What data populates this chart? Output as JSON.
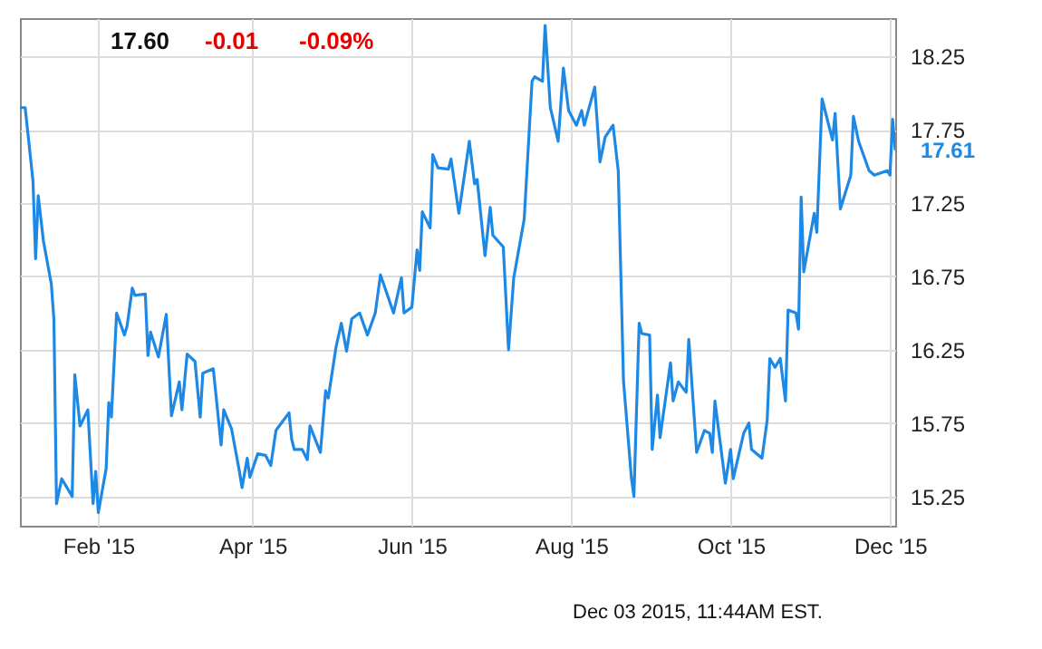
{
  "chart_data": {
    "type": "line",
    "grid": true,
    "marker": "none",
    "line_style": "solid",
    "xlim": [
      "2015-01-02",
      "2015-12-03"
    ],
    "xticks": [
      {
        "value": "2015-02-01",
        "label": "Feb '15"
      },
      {
        "value": "2015-04-01",
        "label": "Apr '15"
      },
      {
        "value": "2015-06-01",
        "label": "Jun '15"
      },
      {
        "value": "2015-08-01",
        "label": "Aug '15"
      },
      {
        "value": "2015-10-01",
        "label": "Oct '15"
      },
      {
        "value": "2015-12-01",
        "label": "Dec '15"
      }
    ],
    "ylim": [
      15.05,
      18.51
    ],
    "yticks": [
      15.25,
      15.75,
      16.25,
      16.75,
      17.25,
      17.75,
      18.25
    ],
    "annotations": [
      "17.60",
      "-0.01",
      "-0.09%",
      {
        "text": "17.61",
        "x": "2015-12-03",
        "y": 17.61
      },
      "Dec 03 2015, 11:44AM EST."
    ],
    "series": [
      {
        "color": "#1e88e5",
        "x": [
          "2015-01-02",
          "2015-01-04",
          "2015-01-07",
          "2015-01-08",
          "2015-01-09",
          "2015-01-11",
          "2015-01-14",
          "2015-01-15",
          "2015-01-16",
          "2015-01-18",
          "2015-01-22",
          "2015-01-23",
          "2015-01-25",
          "2015-01-28",
          "2015-01-30",
          "2015-01-31",
          "2015-02-01",
          "2015-02-04",
          "2015-02-05",
          "2015-02-06",
          "2015-02-08",
          "2015-02-11",
          "2015-02-12",
          "2015-02-14",
          "2015-02-15",
          "2015-02-19",
          "2015-02-20",
          "2015-02-21",
          "2015-02-24",
          "2015-02-27",
          "2015-03-01",
          "2015-03-04",
          "2015-03-05",
          "2015-03-07",
          "2015-03-10",
          "2015-03-12",
          "2015-03-13",
          "2015-03-17",
          "2015-03-20",
          "2015-03-21",
          "2015-03-24",
          "2015-03-27",
          "2015-03-28",
          "2015-03-30",
          "2015-03-31",
          "2015-04-03",
          "2015-04-06",
          "2015-04-08",
          "2015-04-10",
          "2015-04-15",
          "2015-04-16",
          "2015-04-17",
          "2015-04-20",
          "2015-04-22",
          "2015-04-23",
          "2015-04-27",
          "2015-04-29",
          "2015-04-30",
          "2015-05-03",
          "2015-05-05",
          "2015-05-07",
          "2015-05-09",
          "2015-05-12",
          "2015-05-15",
          "2015-05-18",
          "2015-05-20",
          "2015-05-25",
          "2015-05-28",
          "2015-05-29",
          "2015-06-01",
          "2015-06-03",
          "2015-06-04",
          "2015-06-05",
          "2015-06-08",
          "2015-06-09",
          "2015-06-11",
          "2015-06-15",
          "2015-06-16",
          "2015-06-19",
          "2015-06-23",
          "2015-06-25",
          "2015-06-26",
          "2015-06-29",
          "2015-07-01",
          "2015-07-02",
          "2015-07-06",
          "2015-07-08",
          "2015-07-10",
          "2015-07-14",
          "2015-07-17",
          "2015-07-18",
          "2015-07-21",
          "2015-07-22",
          "2015-07-24",
          "2015-07-27",
          "2015-07-29",
          "2015-07-31",
          "2015-08-03",
          "2015-08-05",
          "2015-08-06",
          "2015-08-10",
          "2015-08-12",
          "2015-08-14",
          "2015-08-17",
          "2015-08-19",
          "2015-08-21",
          "2015-08-24",
          "2015-08-25",
          "2015-08-27",
          "2015-08-28",
          "2015-08-31",
          "2015-09-01",
          "2015-09-03",
          "2015-09-04",
          "2015-09-08",
          "2015-09-09",
          "2015-09-11",
          "2015-09-14",
          "2015-09-15",
          "2015-09-18",
          "2015-09-21",
          "2015-09-23",
          "2015-09-24",
          "2015-09-25",
          "2015-09-29",
          "2015-10-01",
          "2015-10-02",
          "2015-10-06",
          "2015-10-08",
          "2015-10-09",
          "2015-10-13",
          "2015-10-15",
          "2015-10-16",
          "2015-10-18",
          "2015-10-20",
          "2015-10-22",
          "2015-10-23",
          "2015-10-26",
          "2015-10-27",
          "2015-10-28",
          "2015-10-29",
          "2015-11-02",
          "2015-11-03",
          "2015-11-05",
          "2015-11-09",
          "2015-11-10",
          "2015-11-12",
          "2015-11-16",
          "2015-11-17",
          "2015-11-19",
          "2015-11-23",
          "2015-11-25",
          "2015-11-30",
          "2015-12-01",
          "2015-12-02",
          "2015-12-03"
        ],
        "values": [
          17.9,
          17.9,
          17.4,
          16.87,
          17.3,
          16.99,
          16.7,
          16.46,
          15.2,
          15.37,
          15.25,
          16.08,
          15.73,
          15.84,
          15.2,
          15.42,
          15.14,
          15.44,
          15.89,
          15.79,
          16.5,
          16.35,
          16.41,
          16.67,
          16.62,
          16.63,
          16.21,
          16.37,
          16.2,
          16.49,
          15.8,
          16.03,
          15.84,
          16.22,
          16.17,
          15.79,
          16.09,
          16.12,
          15.6,
          15.84,
          15.71,
          15.42,
          15.31,
          15.51,
          15.38,
          15.54,
          15.53,
          15.46,
          15.7,
          15.82,
          15.64,
          15.57,
          15.57,
          15.5,
          15.73,
          15.55,
          15.97,
          15.92,
          16.27,
          16.43,
          16.24,
          16.46,
          16.5,
          16.35,
          16.5,
          16.76,
          16.5,
          16.74,
          16.5,
          16.54,
          16.93,
          16.79,
          17.19,
          17.08,
          17.58,
          17.49,
          17.48,
          17.55,
          17.18,
          17.67,
          17.38,
          17.41,
          16.89,
          17.22,
          17.03,
          16.95,
          16.25,
          16.74,
          17.14,
          18.08,
          18.11,
          18.08,
          18.46,
          17.9,
          17.67,
          18.17,
          17.88,
          17.78,
          17.88,
          17.78,
          18.04,
          17.53,
          17.7,
          17.78,
          17.47,
          16.04,
          15.38,
          15.25,
          16.43,
          16.36,
          16.35,
          15.57,
          15.94,
          15.65,
          16.16,
          15.9,
          16.03,
          15.96,
          16.32,
          15.55,
          15.7,
          15.68,
          15.55,
          15.9,
          15.34,
          15.57,
          15.37,
          15.68,
          15.75,
          15.57,
          15.51,
          15.77,
          16.19,
          16.13,
          16.19,
          15.9,
          16.52,
          16.5,
          16.39,
          17.29,
          16.78,
          17.18,
          17.05,
          17.96,
          17.68,
          17.86,
          17.21,
          17.44,
          17.84,
          17.67,
          17.47,
          17.44,
          17.47,
          17.44,
          17.82,
          17.61
        ]
      }
    ]
  }
}
